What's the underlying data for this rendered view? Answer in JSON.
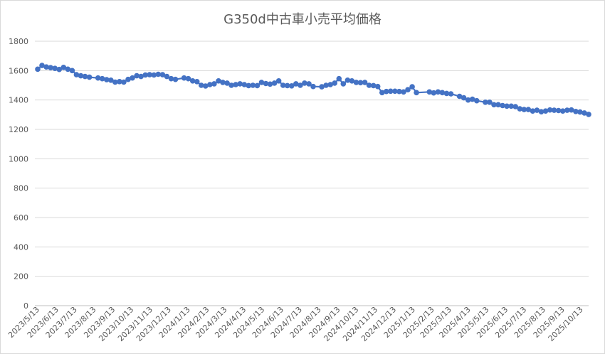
{
  "chart_data": {
    "type": "line",
    "title": "G350d中古車小売平均価格",
    "xlabel": "",
    "ylabel": "",
    "ylim": [
      0,
      1800
    ],
    "yticks": [
      0,
      200,
      400,
      600,
      800,
      1000,
      1200,
      1400,
      1600,
      1800
    ],
    "grid": true,
    "legend": "none",
    "x_start": "2023/5/13",
    "x_end": "2025/10/25",
    "x_tick_labels": [
      "2023/5/13",
      "2023/6/13",
      "2023/7/13",
      "2023/8/13",
      "2023/9/13",
      "2023/10/13",
      "2023/11/13",
      "2023/12/13",
      "2024/1/13",
      "2024/2/13",
      "2024/3/13",
      "2024/4/13",
      "2024/5/13",
      "2024/6/13",
      "2024/7/13",
      "2024/8/13",
      "2024/9/13",
      "2024/10/13",
      "2024/11/13",
      "2024/12/13",
      "2025/1/13",
      "2025/2/13",
      "2025/3/13",
      "2025/4/13",
      "2025/5/13",
      "2025/6/13",
      "2025/7/13",
      "2025/8/13",
      "2025/9/13",
      "2025/10/13"
    ],
    "series": [
      {
        "color": "#4472c4",
        "points": [
          {
            "x": "2023/5/13",
            "y": 1610
          },
          {
            "x": "2023/5/20",
            "y": 1635
          },
          {
            "x": "2023/5/27",
            "y": 1625
          },
          {
            "x": "2023/6/3",
            "y": 1620
          },
          {
            "x": "2023/6/10",
            "y": 1615
          },
          {
            "x": "2023/6/17",
            "y": 1608
          },
          {
            "x": "2023/6/24",
            "y": 1622
          },
          {
            "x": "2023/7/1",
            "y": 1610
          },
          {
            "x": "2023/7/8",
            "y": 1600
          },
          {
            "x": "2023/7/15",
            "y": 1572
          },
          {
            "x": "2023/7/22",
            "y": 1565
          },
          {
            "x": "2023/7/29",
            "y": 1560
          },
          {
            "x": "2023/8/5",
            "y": 1555
          },
          {
            "x": "2023/8/19",
            "y": 1550
          },
          {
            "x": "2023/8/26",
            "y": 1545
          },
          {
            "x": "2023/9/2",
            "y": 1538
          },
          {
            "x": "2023/9/9",
            "y": 1535
          },
          {
            "x": "2023/9/16",
            "y": 1522
          },
          {
            "x": "2023/9/23",
            "y": 1525
          },
          {
            "x": "2023/9/30",
            "y": 1522
          },
          {
            "x": "2023/10/7",
            "y": 1540
          },
          {
            "x": "2023/10/14",
            "y": 1550
          },
          {
            "x": "2023/10/21",
            "y": 1565
          },
          {
            "x": "2023/10/28",
            "y": 1560
          },
          {
            "x": "2023/11/4",
            "y": 1570
          },
          {
            "x": "2023/11/11",
            "y": 1572
          },
          {
            "x": "2023/11/18",
            "y": 1570
          },
          {
            "x": "2023/11/25",
            "y": 1575
          },
          {
            "x": "2023/12/2",
            "y": 1572
          },
          {
            "x": "2023/12/9",
            "y": 1560
          },
          {
            "x": "2023/12/16",
            "y": 1545
          },
          {
            "x": "2023/12/23",
            "y": 1540
          },
          {
            "x": "2024/1/6",
            "y": 1550
          },
          {
            "x": "2024/1/13",
            "y": 1545
          },
          {
            "x": "2024/1/20",
            "y": 1530
          },
          {
            "x": "2024/1/27",
            "y": 1525
          },
          {
            "x": "2024/2/3",
            "y": 1500
          },
          {
            "x": "2024/2/10",
            "y": 1495
          },
          {
            "x": "2024/2/17",
            "y": 1505
          },
          {
            "x": "2024/2/24",
            "y": 1510
          },
          {
            "x": "2024/3/2",
            "y": 1530
          },
          {
            "x": "2024/3/9",
            "y": 1520
          },
          {
            "x": "2024/3/16",
            "y": 1515
          },
          {
            "x": "2024/3/23",
            "y": 1500
          },
          {
            "x": "2024/3/30",
            "y": 1505
          },
          {
            "x": "2024/4/6",
            "y": 1510
          },
          {
            "x": "2024/4/13",
            "y": 1505
          },
          {
            "x": "2024/4/20",
            "y": 1498
          },
          {
            "x": "2024/4/27",
            "y": 1500
          },
          {
            "x": "2024/5/4",
            "y": 1498
          },
          {
            "x": "2024/5/11",
            "y": 1520
          },
          {
            "x": "2024/5/18",
            "y": 1512
          },
          {
            "x": "2024/5/25",
            "y": 1508
          },
          {
            "x": "2024/6/1",
            "y": 1515
          },
          {
            "x": "2024/6/8",
            "y": 1530
          },
          {
            "x": "2024/6/15",
            "y": 1500
          },
          {
            "x": "2024/6/22",
            "y": 1498
          },
          {
            "x": "2024/6/29",
            "y": 1496
          },
          {
            "x": "2024/7/6",
            "y": 1510
          },
          {
            "x": "2024/7/13",
            "y": 1500
          },
          {
            "x": "2024/7/20",
            "y": 1515
          },
          {
            "x": "2024/7/27",
            "y": 1510
          },
          {
            "x": "2024/8/3",
            "y": 1492
          },
          {
            "x": "2024/8/17",
            "y": 1490
          },
          {
            "x": "2024/8/24",
            "y": 1500
          },
          {
            "x": "2024/8/31",
            "y": 1505
          },
          {
            "x": "2024/9/7",
            "y": 1515
          },
          {
            "x": "2024/9/14",
            "y": 1545
          },
          {
            "x": "2024/9/21",
            "y": 1510
          },
          {
            "x": "2024/9/28",
            "y": 1535
          },
          {
            "x": "2024/10/5",
            "y": 1530
          },
          {
            "x": "2024/10/12",
            "y": 1520
          },
          {
            "x": "2024/10/19",
            "y": 1518
          },
          {
            "x": "2024/10/26",
            "y": 1520
          },
          {
            "x": "2024/11/2",
            "y": 1500
          },
          {
            "x": "2024/11/9",
            "y": 1498
          },
          {
            "x": "2024/11/16",
            "y": 1492
          },
          {
            "x": "2024/11/23",
            "y": 1450
          },
          {
            "x": "2024/11/30",
            "y": 1458
          },
          {
            "x": "2024/12/7",
            "y": 1460
          },
          {
            "x": "2024/12/14",
            "y": 1460
          },
          {
            "x": "2024/12/21",
            "y": 1458
          },
          {
            "x": "2024/12/28",
            "y": 1455
          },
          {
            "x": "2025/1/4",
            "y": 1470
          },
          {
            "x": "2025/1/11",
            "y": 1490
          },
          {
            "x": "2025/1/18",
            "y": 1450
          },
          {
            "x": "2025/2/8",
            "y": 1455
          },
          {
            "x": "2025/2/15",
            "y": 1448
          },
          {
            "x": "2025/2/22",
            "y": 1455
          },
          {
            "x": "2025/3/1",
            "y": 1450
          },
          {
            "x": "2025/3/8",
            "y": 1445
          },
          {
            "x": "2025/3/15",
            "y": 1442
          },
          {
            "x": "2025/3/29",
            "y": 1425
          },
          {
            "x": "2025/4/5",
            "y": 1415
          },
          {
            "x": "2025/4/12",
            "y": 1400
          },
          {
            "x": "2025/4/19",
            "y": 1405
          },
          {
            "x": "2025/4/26",
            "y": 1395
          },
          {
            "x": "2025/5/10",
            "y": 1385
          },
          {
            "x": "2025/5/17",
            "y": 1385
          },
          {
            "x": "2025/5/24",
            "y": 1368
          },
          {
            "x": "2025/5/31",
            "y": 1368
          },
          {
            "x": "2025/6/7",
            "y": 1362
          },
          {
            "x": "2025/6/14",
            "y": 1358
          },
          {
            "x": "2025/6/21",
            "y": 1358
          },
          {
            "x": "2025/6/28",
            "y": 1355
          },
          {
            "x": "2025/7/5",
            "y": 1340
          },
          {
            "x": "2025/7/12",
            "y": 1335
          },
          {
            "x": "2025/7/19",
            "y": 1335
          },
          {
            "x": "2025/7/26",
            "y": 1325
          },
          {
            "x": "2025/8/2",
            "y": 1330
          },
          {
            "x": "2025/8/9",
            "y": 1320
          },
          {
            "x": "2025/8/16",
            "y": 1325
          },
          {
            "x": "2025/8/23",
            "y": 1332
          },
          {
            "x": "2025/8/30",
            "y": 1330
          },
          {
            "x": "2025/9/6",
            "y": 1328
          },
          {
            "x": "2025/9/13",
            "y": 1325
          },
          {
            "x": "2025/9/20",
            "y": 1330
          },
          {
            "x": "2025/9/27",
            "y": 1332
          },
          {
            "x": "2025/10/4",
            "y": 1322
          },
          {
            "x": "2025/10/11",
            "y": 1318
          },
          {
            "x": "2025/10/18",
            "y": 1312
          },
          {
            "x": "2025/10/25",
            "y": 1302
          }
        ]
      }
    ]
  }
}
